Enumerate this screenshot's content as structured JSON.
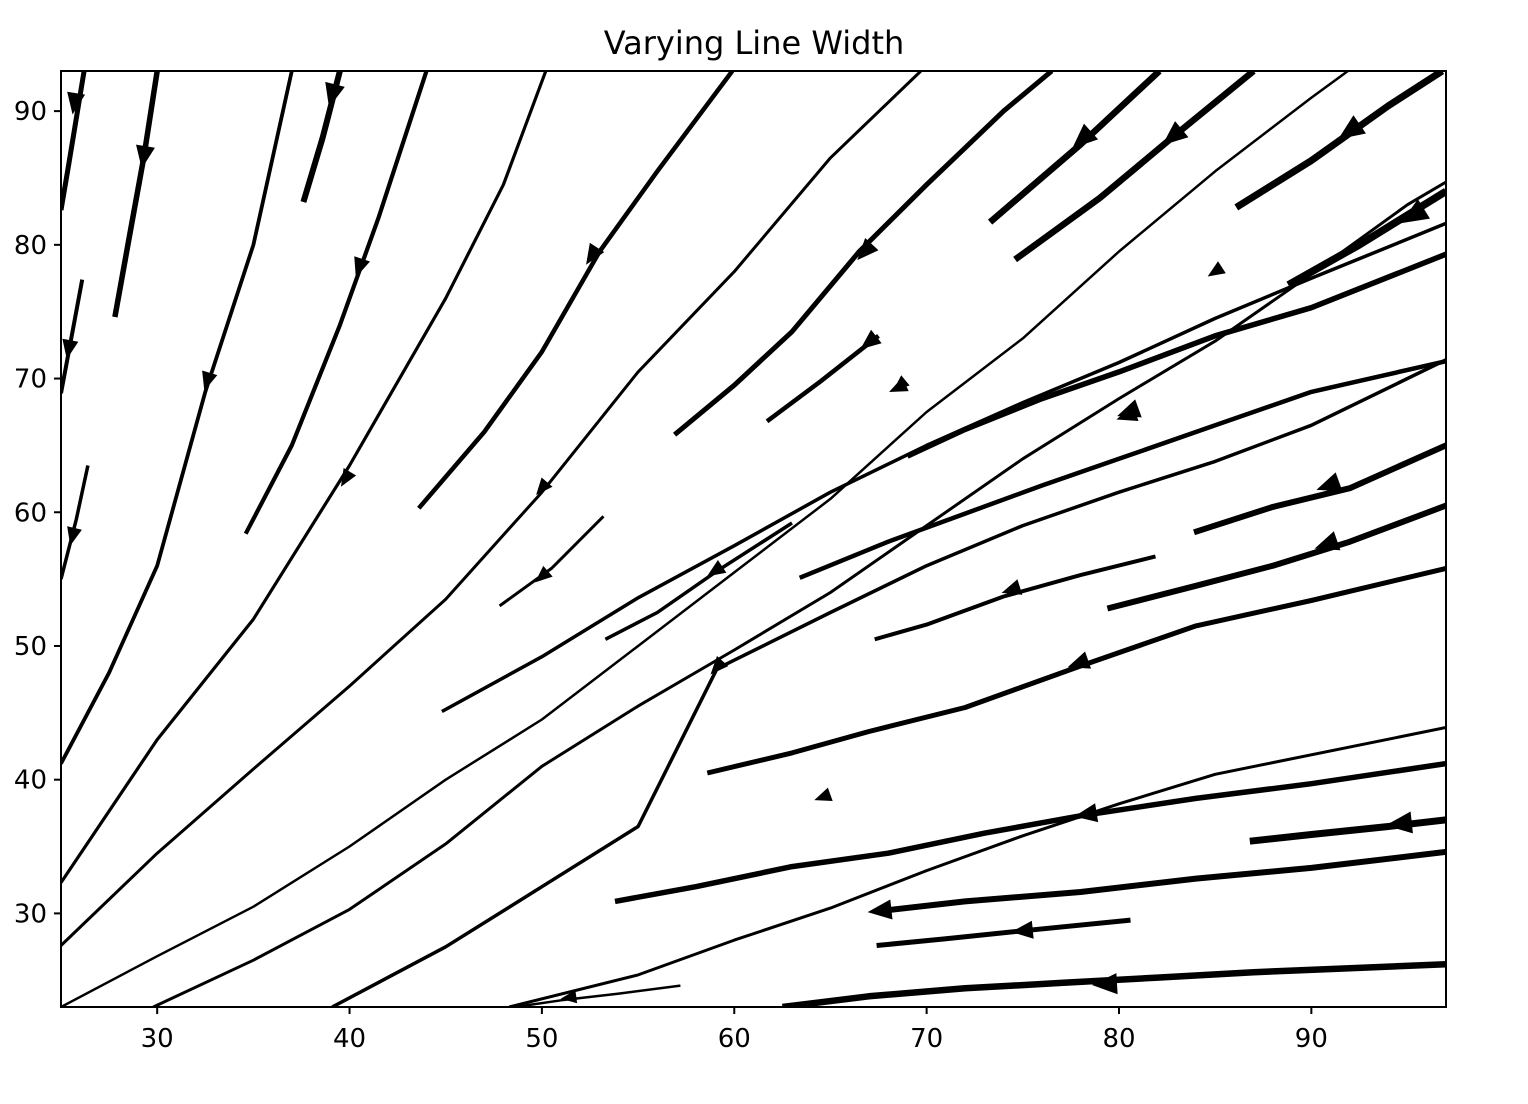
{
  "chart_data": {
    "type": "streamplot",
    "title": "Varying Line Width",
    "xlabel": "",
    "ylabel": "",
    "xlim": [
      25,
      97
    ],
    "ylim": [
      23,
      93
    ],
    "x_ticks": [
      30,
      40,
      50,
      60,
      70,
      80,
      90
    ],
    "y_ticks": [
      30,
      40,
      50,
      60,
      70,
      80,
      90
    ],
    "grid": false,
    "line_color": "#000000",
    "flow_description": "streamlines radiating from the lower-left origin region; arrows point toward lower-left; line width increases toward upper-right",
    "streamlines": [
      {
        "points": [
          [
            25.0,
            82.6
          ],
          [
            25.4,
            86
          ],
          [
            25.8,
            89.5
          ],
          [
            26.2,
            93
          ]
        ],
        "width": 5.0,
        "arrows": [
          [
            25.7,
            90.6
          ]
        ]
      },
      {
        "points": [
          [
            27.8,
            74.6
          ],
          [
            28.6,
            81
          ],
          [
            29.3,
            86.5
          ],
          [
            30.0,
            93
          ]
        ],
        "width": 5.5,
        "arrows": [
          [
            29.3,
            86.6
          ]
        ]
      },
      {
        "points": [
          [
            37.6,
            83.2
          ],
          [
            38.6,
            88
          ],
          [
            39.5,
            93
          ]
        ],
        "width": 6.0,
        "arrows": [
          [
            39.1,
            91.2
          ]
        ]
      },
      {
        "points": [
          [
            25.0,
            68.9
          ],
          [
            25.6,
            73.5
          ],
          [
            26.1,
            77.4
          ]
        ],
        "width": 4.0,
        "arrows": [
          [
            25.4,
            72.2
          ]
        ]
      },
      {
        "points": [
          [
            25.0,
            55.0
          ],
          [
            25.8,
            59.5
          ],
          [
            26.4,
            63.5
          ]
        ],
        "width": 3.5,
        "arrows": [
          [
            25.6,
            58.2
          ]
        ]
      },
      {
        "points": [
          [
            25.0,
            41.2
          ],
          [
            27.5,
            48
          ],
          [
            30,
            56
          ],
          [
            32.5,
            69
          ],
          [
            35,
            80
          ],
          [
            37.0,
            93
          ]
        ],
        "width": 3.8,
        "arrows": [
          [
            32.6,
            69.8
          ]
        ]
      },
      {
        "points": [
          [
            34.6,
            58.4
          ],
          [
            37,
            65
          ],
          [
            39.5,
            74
          ],
          [
            41.5,
            82
          ],
          [
            44.0,
            93
          ]
        ],
        "width": 4.2,
        "arrows": [
          [
            40.5,
            78.3
          ]
        ]
      },
      {
        "points": [
          [
            25.0,
            32.3
          ],
          [
            30,
            43
          ],
          [
            35,
            52
          ],
          [
            40,
            63.5
          ],
          [
            45,
            76
          ],
          [
            48,
            84.5
          ],
          [
            50.2,
            93
          ]
        ],
        "width": 3.2,
        "arrows": [
          [
            39.8,
            62.5
          ]
        ]
      },
      {
        "points": [
          [
            43.6,
            60.3
          ],
          [
            47,
            66
          ],
          [
            50,
            72
          ],
          [
            53,
            79.5
          ],
          [
            56,
            85.5
          ],
          [
            59.9,
            93
          ]
        ],
        "width": 4.5,
        "arrows": [
          [
            52.6,
            79.2
          ]
        ]
      },
      {
        "points": [
          [
            25.0,
            27.6
          ],
          [
            30,
            34.5
          ],
          [
            35,
            40.8
          ],
          [
            40,
            47
          ],
          [
            45,
            53.5
          ],
          [
            50,
            61.5
          ],
          [
            55,
            70.5
          ],
          [
            60,
            78
          ],
          [
            65,
            86.5
          ],
          [
            69.7,
            93
          ]
        ],
        "width": 3.0,
        "arrows": [
          [
            50.0,
            61.8
          ]
        ]
      },
      {
        "points": [
          [
            47.8,
            53.0
          ],
          [
            50.5,
            55.8
          ],
          [
            53.2,
            59.7
          ]
        ],
        "width": 3.0,
        "arrows": [
          [
            50.0,
            55.2
          ]
        ]
      },
      {
        "points": [
          [
            56.9,
            65.8
          ],
          [
            60,
            69.5
          ],
          [
            63,
            73.5
          ],
          [
            66.5,
            79.5
          ],
          [
            70,
            84.5
          ],
          [
            74,
            90
          ],
          [
            76.5,
            93
          ]
        ],
        "width": 5.0,
        "arrows": [
          [
            66.8,
            79.5
          ]
        ]
      },
      {
        "points": [
          [
            61.7,
            66.8
          ],
          [
            64.5,
            69.8
          ],
          [
            67.5,
            73.2
          ]
        ],
        "width": 4.5,
        "arrows": [
          [
            67.0,
            72.7
          ]
        ]
      },
      {
        "points": [
          [
            25.0,
            23.0
          ],
          [
            30,
            26.8
          ],
          [
            35,
            30.5
          ],
          [
            40,
            35
          ],
          [
            45,
            40
          ],
          [
            50,
            44.5
          ],
          [
            55,
            50
          ],
          [
            60,
            55.5
          ],
          [
            65,
            61
          ],
          [
            70,
            67.5
          ],
          [
            75,
            73
          ],
          [
            80,
            79.5
          ],
          [
            85,
            85.5
          ],
          [
            90,
            91
          ],
          [
            91.9,
            93
          ]
        ],
        "width": 2.5,
        "arrows": [
          [
            68.6,
            69.5
          ]
        ]
      },
      {
        "points": [
          [
            73.3,
            81.7
          ],
          [
            78,
            87.5
          ],
          [
            82.1,
            93
          ]
        ],
        "width": 6.5,
        "arrows": [
          [
            78.1,
            87.9
          ]
        ]
      },
      {
        "points": [
          [
            74.6,
            78.9
          ],
          [
            79,
            83.5
          ],
          [
            83,
            88.3
          ],
          [
            87.0,
            93
          ]
        ],
        "width": 6.5,
        "arrows": [
          [
            82.8,
            88.1
          ]
        ]
      },
      {
        "points": [
          [
            29.8,
            23.0
          ],
          [
            35,
            26.5
          ],
          [
            40,
            30.3
          ],
          [
            45,
            35.2
          ],
          [
            50,
            41
          ],
          [
            55,
            45.5
          ],
          [
            60,
            49.7
          ],
          [
            65,
            54
          ],
          [
            70,
            59
          ],
          [
            75,
            64
          ],
          [
            80,
            68.5
          ],
          [
            85,
            72.8
          ],
          [
            90,
            77.8
          ],
          [
            95,
            83
          ],
          [
            97.0,
            84.7
          ]
        ],
        "width": 3.0,
        "arrows": [
          [
            85.0,
            78.0
          ]
        ]
      },
      {
        "points": [
          [
            86.1,
            82.8
          ],
          [
            90,
            86.3
          ],
          [
            94,
            90.4
          ],
          [
            96.8,
            93
          ]
        ],
        "width": 7.0,
        "arrows": [
          [
            92.0,
            88.5
          ]
        ]
      },
      {
        "points": [
          [
            88.8,
            77.0
          ],
          [
            92.5,
            80
          ],
          [
            97.0,
            84.0
          ]
        ],
        "width": 7.5,
        "arrows": [
          [
            95.3,
            82.2
          ]
        ]
      },
      {
        "points": [
          [
            44.8,
            45.1
          ],
          [
            50,
            49.2
          ],
          [
            55,
            53.6
          ],
          [
            60,
            57.5
          ],
          [
            65,
            61.5
          ],
          [
            70,
            65
          ],
          [
            75,
            68.2
          ],
          [
            80,
            71.2
          ],
          [
            85,
            74.5
          ],
          [
            90,
            77.5
          ],
          [
            97.0,
            81.6
          ]
        ],
        "width": 3.5,
        "arrows": [
          [
            68.5,
            69.3
          ]
        ]
      },
      {
        "points": [
          [
            53.3,
            50.5
          ],
          [
            56,
            52.5
          ],
          [
            59,
            55.5
          ],
          [
            63.0,
            59.2
          ]
        ],
        "width": 3.5,
        "arrows": [
          [
            59.0,
            55.6
          ]
        ]
      },
      {
        "points": [
          [
            69.0,
            64.2
          ],
          [
            72,
            66.2
          ],
          [
            76,
            68.5
          ],
          [
            80,
            70.5
          ],
          [
            85,
            73.2
          ],
          [
            90,
            75.3
          ],
          [
            97.0,
            79.3
          ]
        ],
        "width": 5.5,
        "arrows": [
          [
            80.5,
            67.5
          ]
        ]
      },
      {
        "points": [
          [
            39.1,
            23.0
          ],
          [
            45,
            27.5
          ],
          [
            50,
            32
          ],
          [
            55,
            36.5
          ],
          [
            59.1,
            48.3
          ],
          [
            65,
            52.5
          ],
          [
            70,
            56
          ],
          [
            75,
            59
          ],
          [
            80,
            61.5
          ],
          [
            85,
            63.8
          ],
          [
            90,
            66.5
          ],
          [
            97.0,
            71.4
          ]
        ],
        "width": 3.5,
        "arrows": [
          [
            59.1,
            48.4
          ]
        ]
      },
      {
        "points": [
          [
            63.4,
            55.1
          ],
          [
            68,
            57.8
          ],
          [
            72,
            59.9
          ],
          [
            76,
            62
          ],
          [
            80,
            64
          ],
          [
            85,
            66.5
          ],
          [
            90,
            69
          ],
          [
            97.0,
            71.3
          ]
        ],
        "width": 4.5,
        "arrows": [
          [
            80.4,
            67.2
          ]
        ]
      },
      {
        "points": [
          [
            67.3,
            50.5
          ],
          [
            70,
            51.6
          ],
          [
            74,
            53.7
          ],
          [
            78,
            55.3
          ],
          [
            81.9,
            56.7
          ]
        ],
        "width": 4.0,
        "arrows": [
          [
            74.4,
            54.2
          ]
        ]
      },
      {
        "points": [
          [
            83.9,
            58.5
          ],
          [
            88,
            60.4
          ],
          [
            92,
            61.8
          ],
          [
            97.0,
            65.0
          ]
        ],
        "width": 6.0,
        "arrows": [
          [
            90.9,
            62.0
          ]
        ]
      },
      {
        "points": [
          [
            79.4,
            52.8
          ],
          [
            84,
            54.5
          ],
          [
            88,
            56
          ],
          [
            92,
            57.8
          ],
          [
            97.0,
            60.5
          ]
        ],
        "width": 6.0,
        "arrows": [
          [
            90.8,
            57.6
          ]
        ]
      },
      {
        "points": [
          [
            48.3,
            23.0
          ],
          [
            55,
            25.4
          ],
          [
            60,
            28
          ],
          [
            65,
            30.4
          ],
          [
            70,
            33.2
          ],
          [
            75,
            35.8
          ],
          [
            80,
            38.2
          ],
          [
            85,
            40.4
          ],
          [
            97.0,
            43.9
          ]
        ],
        "width": 3.0,
        "arrows": [
          [
            64.6,
            38.7
          ]
        ]
      },
      {
        "points": [
          [
            58.6,
            40.5
          ],
          [
            63,
            42
          ],
          [
            67,
            43.6
          ],
          [
            72,
            45.4
          ],
          [
            78,
            48.5
          ],
          [
            84,
            51.5
          ],
          [
            90,
            53.4
          ],
          [
            97.0,
            55.8
          ]
        ],
        "width": 5.0,
        "arrows": [
          [
            77.9,
            48.7
          ]
        ]
      },
      {
        "points": [
          [
            53.8,
            30.9
          ],
          [
            58,
            32
          ],
          [
            63,
            33.5
          ],
          [
            68,
            34.5
          ],
          [
            73,
            36
          ],
          [
            78,
            37.3
          ],
          [
            84,
            38.6
          ],
          [
            90,
            39.7
          ],
          [
            97.0,
            41.2
          ]
        ],
        "width": 5.5,
        "arrows": [
          [
            78.3,
            37.4
          ]
        ]
      },
      {
        "points": [
          [
            62.5,
            23.0
          ],
          [
            67,
            23.8
          ],
          [
            72,
            24.4
          ],
          [
            77,
            24.8
          ],
          [
            82,
            25.2
          ],
          [
            87,
            25.6
          ],
          [
            92,
            25.9
          ],
          [
            97.0,
            26.2
          ]
        ],
        "width": 6.5,
        "arrows": [
          [
            79.3,
            24.7
          ]
        ]
      },
      {
        "points": [
          [
            67.7,
            30.2
          ],
          [
            72,
            30.9
          ],
          [
            78,
            31.6
          ],
          [
            84,
            32.6
          ],
          [
            90,
            33.4
          ],
          [
            97.0,
            34.6
          ]
        ],
        "width": 6.0,
        "arrows": [
          [
            67.6,
            30.2
          ]
        ]
      },
      {
        "points": [
          [
            67.4,
            27.6
          ],
          [
            71,
            28.1
          ],
          [
            75,
            28.7
          ],
          [
            80.6,
            29.5
          ]
        ],
        "width": 5.0,
        "arrows": [
          [
            75.0,
            28.7
          ]
        ]
      },
      {
        "points": [
          [
            86.8,
            35.4
          ],
          [
            90,
            35.9
          ],
          [
            94,
            36.5
          ],
          [
            97.0,
            37.0
          ]
        ],
        "width": 7.0,
        "arrows": [
          [
            94.6,
            36.7
          ]
        ]
      },
      {
        "points": [
          [
            48.6,
            23.0
          ],
          [
            51,
            23.5
          ],
          [
            54,
            24.0
          ],
          [
            57.2,
            24.6
          ]
        ],
        "width": 2.5,
        "arrows": [
          [
            51.4,
            23.7
          ]
        ]
      }
    ]
  }
}
